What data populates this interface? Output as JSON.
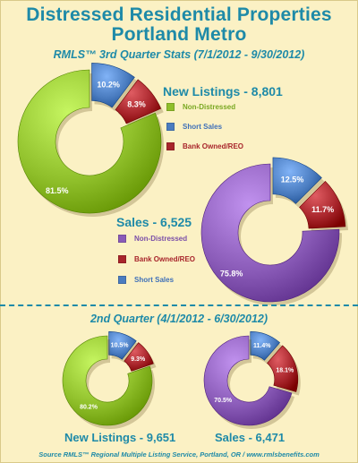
{
  "colors": {
    "green": "#8fbf2a",
    "blue": "#4a7cc0",
    "red": "#a8252b",
    "purple": "#8a5bb8",
    "accent": "#1e8aa8"
  },
  "header": {
    "title_line1": "Distressed Residential Properties",
    "title_line2": "Portland Metro",
    "subtitle": "RMLS™ 3rd Quarter Stats (7/1/2012 - 9/30/2012)",
    "section2_title": "2nd Quarter (4/1/2012 - 6/30/2012)",
    "source": "Source RMLS™ Regional Multiple Listing Service, Portland, OR / www.rmlsbenefits.com"
  },
  "legends": {
    "new_listings": {
      "heading": "New Listings - 8,801",
      "items": [
        {
          "label": "Non-Distressed",
          "color": "#8fbf2a",
          "text_color": "#7aa822"
        },
        {
          "label": "Short Sales",
          "color": "#4a7cc0",
          "text_color": "#3f70b8"
        },
        {
          "label": "Bank Owned/REO",
          "color": "#a8252b",
          "text_color": "#a8252b"
        }
      ]
    },
    "sales": {
      "heading": "Sales - 6,525",
      "items": [
        {
          "label": "Non-Distressed",
          "color": "#8a5bb8",
          "text_color": "#7a4fa8"
        },
        {
          "label": "Bank Owned/REO",
          "color": "#a8252b",
          "text_color": "#a8252b"
        },
        {
          "label": "Short Sales",
          "color": "#4a7cc0",
          "text_color": "#3f70b8"
        }
      ]
    }
  },
  "chart_data": [
    {
      "type": "pie",
      "id": "q3-new-listings",
      "title": "New Listings - 8,801",
      "series": [
        {
          "name": "Short Sales",
          "value": 10.2,
          "label": "10.2%",
          "color": "#4a7cc0",
          "exploded": true
        },
        {
          "name": "Bank Owned/REO",
          "value": 8.3,
          "label": "8.3%",
          "color": "#a8252b",
          "exploded": true
        },
        {
          "name": "Non-Distressed",
          "value": 81.5,
          "label": "81.5%",
          "color": "#8fbf2a",
          "exploded": false
        }
      ]
    },
    {
      "type": "pie",
      "id": "q3-sales",
      "title": "Sales - 6,525",
      "series": [
        {
          "name": "Short Sales",
          "value": 12.5,
          "label": "12.5%",
          "color": "#4a7cc0",
          "exploded": true
        },
        {
          "name": "Bank Owned/REO",
          "value": 11.7,
          "label": "11.7%",
          "color": "#a8252b",
          "exploded": true
        },
        {
          "name": "Non-Distressed",
          "value": 75.8,
          "label": "75.8%",
          "color": "#8a5bb8",
          "exploded": false
        }
      ]
    },
    {
      "type": "pie",
      "id": "q2-new-listings",
      "title": "New Listings - 9,651",
      "series": [
        {
          "name": "Short Sales",
          "value": 10.5,
          "label": "10.5%",
          "color": "#4a7cc0",
          "exploded": true
        },
        {
          "name": "Bank Owned/REO",
          "value": 9.3,
          "label": "9.3%",
          "color": "#a8252b",
          "exploded": true
        },
        {
          "name": "Non-Distressed",
          "value": 80.2,
          "label": "80.2%",
          "color": "#8fbf2a",
          "exploded": false
        }
      ]
    },
    {
      "type": "pie",
      "id": "q2-sales",
      "title": "Sales - 6,471",
      "series": [
        {
          "name": "Short Sales",
          "value": 11.4,
          "label": "11.4%",
          "color": "#4a7cc0",
          "exploded": true
        },
        {
          "name": "Bank Owned/REO",
          "value": 18.1,
          "label": "18.1%",
          "color": "#a8252b",
          "exploded": true
        },
        {
          "name": "Non-Distressed",
          "value": 70.5,
          "label": "70.5%",
          "color": "#8a5bb8",
          "exploded": false
        }
      ]
    }
  ]
}
